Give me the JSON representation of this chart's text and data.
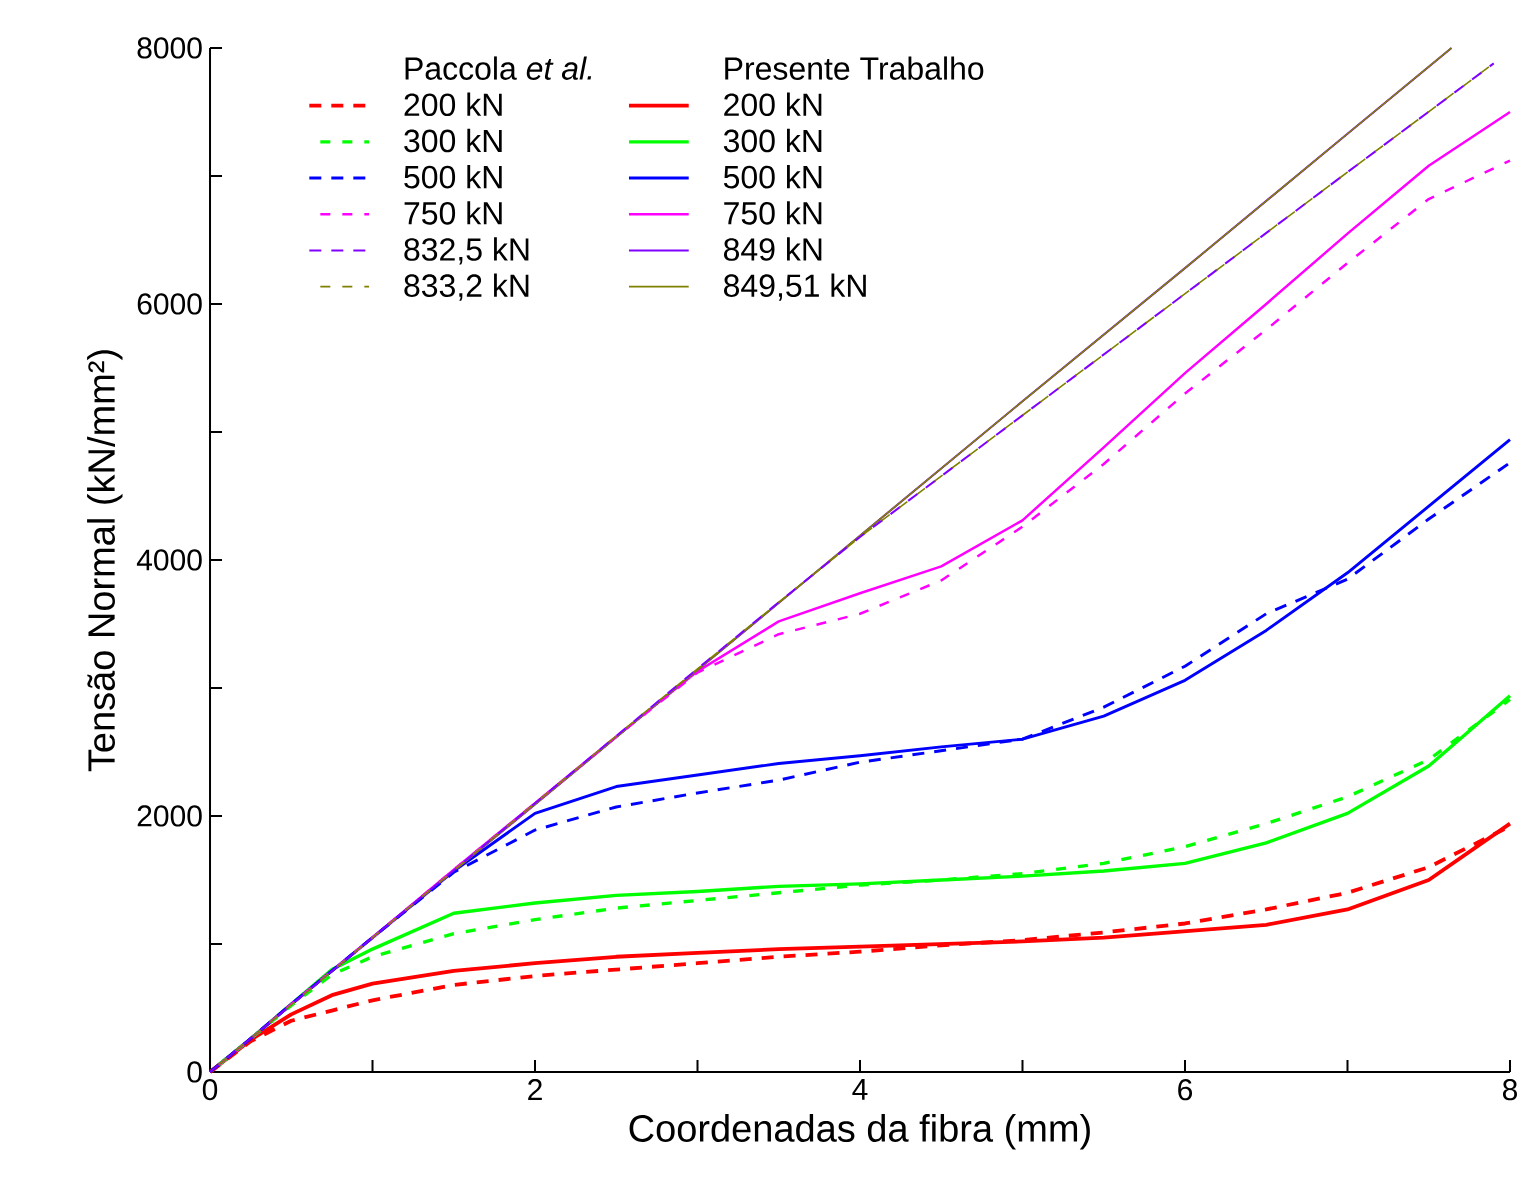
{
  "chart_data": {
    "type": "line",
    "xlabel": "Coordenadas da fibra (mm)",
    "ylabel": "Tensão Normal (kN/mm²)",
    "annotations": [
      "Paccola *et al.*",
      "Presente Trabalho"
    ],
    "xlim": [
      0,
      8
    ],
    "ylim": [
      0,
      8000
    ],
    "xticks": [
      0,
      {
        "value": 1,
        "label": null
      },
      2,
      {
        "value": 3,
        "label": null
      },
      4,
      {
        "value": 5,
        "label": null
      },
      6,
      {
        "value": 7,
        "label": null
      },
      8
    ],
    "yticks": [
      0,
      {
        "value": 1000,
        "label": null
      },
      2000,
      {
        "value": 3000,
        "label": null
      },
      4000,
      {
        "value": 5000,
        "label": null
      },
      6000,
      {
        "value": 7000,
        "label": null
      },
      8000
    ],
    "legend": "top left",
    "marker": "none",
    "series": [
      {
        "name": "200 kN",
        "color": "#ff0000",
        "line_style": "dashed",
        "x": [
          0,
          0.25,
          0.5,
          0.75,
          1,
          1.5,
          2,
          2.5,
          3,
          3.5,
          4,
          4.5,
          5,
          5.5,
          6,
          6.5,
          7,
          7.5,
          8
        ],
        "values": [
          0,
          240,
          400,
          480,
          560,
          680,
          750,
          800,
          850,
          900,
          940,
          990,
          1030,
          1090,
          1160,
          1270,
          1400,
          1600,
          1920
        ]
      },
      {
        "name": "300 kN",
        "color": "#00ff00",
        "line_style": "dashed",
        "x": [
          0,
          0.25,
          0.5,
          0.75,
          1,
          1.5,
          2,
          2.5,
          3,
          3.5,
          4,
          4.5,
          5,
          5.5,
          6,
          6.5,
          7,
          7.5,
          8
        ],
        "values": [
          0,
          260,
          520,
          760,
          900,
          1080,
          1190,
          1280,
          1340,
          1400,
          1460,
          1500,
          1550,
          1630,
          1760,
          1940,
          2150,
          2440,
          2910
        ]
      },
      {
        "name": "500 kN",
        "color": "#0000ff",
        "line_style": "dashed",
        "x": [
          0,
          0.25,
          0.5,
          0.75,
          1,
          1.5,
          2,
          2.5,
          3,
          3.5,
          4,
          4.5,
          5,
          5.5,
          6,
          6.5,
          7,
          7.5,
          8
        ],
        "values": [
          0,
          260,
          530,
          790,
          1050,
          1560,
          1890,
          2070,
          2180,
          2280,
          2420,
          2510,
          2600,
          2850,
          3170,
          3580,
          3850,
          4320,
          4760
        ]
      },
      {
        "name": "750 kN",
        "color": "#ff00ff",
        "line_style": "dashed",
        "x": [
          0,
          0.25,
          0.5,
          0.75,
          1,
          1.5,
          2,
          2.5,
          3,
          3.5,
          4,
          4.5,
          5,
          5.5,
          6,
          6.5,
          7,
          7.5,
          8
        ],
        "values": [
          0,
          260,
          530,
          790,
          1050,
          1580,
          2100,
          2620,
          3120,
          3420,
          3580,
          3840,
          4260,
          4750,
          5300,
          5800,
          6320,
          6820,
          7120
        ]
      },
      {
        "name": "832,5 kN",
        "color": "#8000ff",
        "line_style": "dashed",
        "x": [
          0,
          1,
          2,
          3,
          3.5,
          4,
          5,
          6,
          7,
          7.9
        ],
        "values": [
          0,
          1050,
          2100,
          3150,
          3670,
          4180,
          5130,
          6080,
          7030,
          7880
        ]
      },
      {
        "name": "833,2 kN",
        "color": "#808000",
        "line_style": "dashed",
        "x": [
          0,
          1,
          2,
          3,
          3.5,
          4,
          5,
          6,
          7,
          7.9
        ],
        "values": [
          0,
          1050,
          2100,
          3150,
          3670,
          4180,
          5130,
          6080,
          7030,
          7880
        ]
      },
      {
        "name": "200 kN",
        "color": "#ff0000",
        "line_style": "solid",
        "x": [
          0,
          0.25,
          0.5,
          0.75,
          1,
          1.5,
          2,
          2.5,
          3,
          3.5,
          4,
          4.5,
          5,
          5.5,
          6,
          6.5,
          7,
          7.5,
          8
        ],
        "values": [
          0,
          250,
          450,
          600,
          690,
          790,
          850,
          900,
          930,
          960,
          980,
          1000,
          1020,
          1050,
          1100,
          1150,
          1270,
          1500,
          1940
        ]
      },
      {
        "name": "300 kN",
        "color": "#00ff00",
        "line_style": "solid",
        "x": [
          0,
          0.25,
          0.5,
          0.75,
          1,
          1.5,
          2,
          2.5,
          3,
          3.5,
          4,
          4.5,
          5,
          5.5,
          6,
          6.5,
          7,
          7.5,
          8
        ],
        "values": [
          0,
          260,
          530,
          800,
          960,
          1240,
          1320,
          1380,
          1410,
          1450,
          1470,
          1500,
          1530,
          1570,
          1630,
          1790,
          2020,
          2390,
          2940
        ]
      },
      {
        "name": "500 kN",
        "color": "#0000ff",
        "line_style": "solid",
        "x": [
          0,
          0.25,
          0.5,
          0.75,
          1,
          1.5,
          2,
          2.5,
          3,
          3.5,
          4,
          4.5,
          5,
          5.5,
          6,
          6.5,
          7,
          7.5,
          8
        ],
        "values": [
          0,
          260,
          530,
          790,
          1050,
          1570,
          2020,
          2230,
          2320,
          2410,
          2470,
          2540,
          2600,
          2780,
          3060,
          3450,
          3900,
          4420,
          4940
        ]
      },
      {
        "name": "750 kN",
        "color": "#ff00ff",
        "line_style": "solid",
        "x": [
          0,
          0.25,
          0.5,
          0.75,
          1,
          1.5,
          2,
          2.5,
          3,
          3.5,
          4,
          4.5,
          5,
          5.5,
          6,
          6.5,
          7,
          7.5,
          8
        ],
        "values": [
          0,
          260,
          530,
          790,
          1050,
          1580,
          2100,
          2620,
          3130,
          3520,
          3740,
          3950,
          4310,
          4880,
          5460,
          6000,
          6550,
          7080,
          7500
        ]
      },
      {
        "name": "849 kN",
        "color": "#8000ff",
        "line_style": "solid",
        "x": [
          0,
          1,
          2,
          3,
          4,
          5,
          6,
          7,
          7.64
        ],
        "values": [
          0,
          1050,
          2090,
          3140,
          4190,
          5240,
          6280,
          7330,
          8000
        ]
      },
      {
        "name": "849,51 kN",
        "color": "#808000",
        "line_style": "solid",
        "x": [
          0,
          1,
          2,
          3,
          4,
          5,
          6,
          7,
          7.64
        ],
        "values": [
          0,
          1050,
          2090,
          3140,
          4190,
          5240,
          6280,
          7330,
          8000
        ]
      }
    ]
  }
}
